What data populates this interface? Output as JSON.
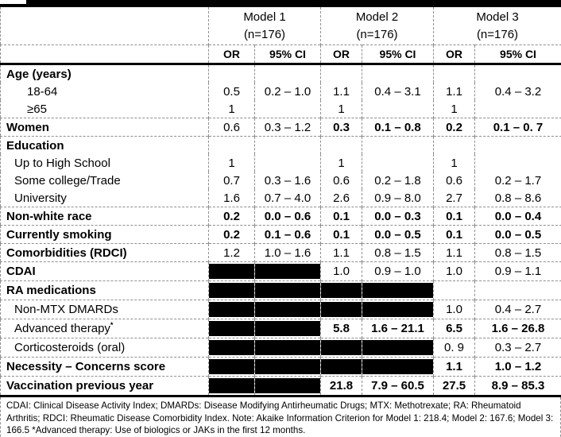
{
  "header": {
    "stub": "",
    "models": [
      {
        "name": "Model 1",
        "n": "(n=176)"
      },
      {
        "name": "Model 2",
        "n": "(n=176)"
      },
      {
        "name": "Model 3",
        "n": "(n=176)"
      }
    ],
    "col_labels": {
      "or": "OR",
      "ci": "95% CI"
    }
  },
  "rows": [
    {
      "label": "Age (years)",
      "bold": true,
      "indent": 0,
      "sep": false,
      "cells": [
        {
          "t": ""
        },
        {
          "t": ""
        },
        {
          "t": ""
        },
        {
          "t": ""
        },
        {
          "t": ""
        },
        {
          "t": ""
        }
      ]
    },
    {
      "label": "18-64",
      "bold": false,
      "indent": 2,
      "sep": false,
      "cells": [
        {
          "t": "0.5"
        },
        {
          "t": "0.2 – 1.0"
        },
        {
          "t": "1.1"
        },
        {
          "t": "0.4 – 3.1"
        },
        {
          "t": "1.1"
        },
        {
          "t": "0.4 – 3.2"
        }
      ]
    },
    {
      "label": "≥65",
      "bold": false,
      "indent": 2,
      "sep": false,
      "cells": [
        {
          "t": "1"
        },
        {
          "t": ""
        },
        {
          "t": "1"
        },
        {
          "t": ""
        },
        {
          "t": "1"
        },
        {
          "t": ""
        }
      ]
    },
    {
      "label": "Women",
      "bold": true,
      "indent": 0,
      "sep": true,
      "cells": [
        {
          "t": "0.6"
        },
        {
          "t": "0.3 – 1.2"
        },
        {
          "t": "0.3",
          "b": true
        },
        {
          "t": "0.1 – 0.8",
          "b": true
        },
        {
          "t": "0.2",
          "b": true
        },
        {
          "t": "0.1 – 0. 7",
          "b": true
        }
      ]
    },
    {
      "label": "Education",
      "bold": true,
      "indent": 0,
      "sep": true,
      "cells": [
        {
          "t": ""
        },
        {
          "t": ""
        },
        {
          "t": ""
        },
        {
          "t": ""
        },
        {
          "t": ""
        },
        {
          "t": ""
        }
      ]
    },
    {
      "label": "Up to High School",
      "bold": false,
      "indent": 1,
      "sep": false,
      "cells": [
        {
          "t": "1"
        },
        {
          "t": ""
        },
        {
          "t": "1"
        },
        {
          "t": ""
        },
        {
          "t": "1"
        },
        {
          "t": ""
        }
      ]
    },
    {
      "label": "Some college/Trade",
      "bold": false,
      "indent": 1,
      "sep": false,
      "cells": [
        {
          "t": "0.7"
        },
        {
          "t": "0.3 – 1.6"
        },
        {
          "t": "0.6"
        },
        {
          "t": "0.2 – 1.8"
        },
        {
          "t": "0.6"
        },
        {
          "t": "0.2 – 1.7"
        }
      ]
    },
    {
      "label": "University",
      "bold": false,
      "indent": 1,
      "sep": false,
      "cells": [
        {
          "t": "1.6"
        },
        {
          "t": "0.7 – 4.0"
        },
        {
          "t": "2.6"
        },
        {
          "t": "0.9 – 8.0"
        },
        {
          "t": "2.7"
        },
        {
          "t": "0.8 – 8.6"
        }
      ]
    },
    {
      "label": "Non-white race",
      "bold": true,
      "indent": 0,
      "sep": true,
      "cells": [
        {
          "t": "0.2",
          "b": true
        },
        {
          "t": "0.0 – 0.6",
          "b": true
        },
        {
          "t": "0.1",
          "b": true
        },
        {
          "t": "0.0 – 0.3",
          "b": true
        },
        {
          "t": "0.1",
          "b": true
        },
        {
          "t": "0.0 – 0.4",
          "b": true
        }
      ]
    },
    {
      "label": "Currently smoking",
      "bold": true,
      "indent": 0,
      "sep": true,
      "cells": [
        {
          "t": "0.2",
          "b": true
        },
        {
          "t": "0.1 – 0.6",
          "b": true
        },
        {
          "t": "0.1",
          "b": true
        },
        {
          "t": "0.0 – 0.5",
          "b": true
        },
        {
          "t": "0.1",
          "b": true
        },
        {
          "t": "0.0 – 0.5",
          "b": true
        }
      ]
    },
    {
      "label": "Comorbidities (RDCI)",
      "bold": true,
      "indent": 0,
      "sep": true,
      "cells": [
        {
          "t": "1.2"
        },
        {
          "t": "1.0 – 1.6"
        },
        {
          "t": "1.1"
        },
        {
          "t": "0.8 – 1.5"
        },
        {
          "t": "1.1"
        },
        {
          "t": "0.8 – 1.5"
        }
      ]
    },
    {
      "label": "CDAI",
      "bold": true,
      "indent": 0,
      "sep": true,
      "cells": [
        {
          "k": true
        },
        {
          "k": true
        },
        {
          "t": "1.0"
        },
        {
          "t": "0.9 – 1.0"
        },
        {
          "t": "1.0"
        },
        {
          "t": "0.9 – 1.1"
        }
      ]
    },
    {
      "label": "RA medications",
      "bold": true,
      "indent": 0,
      "sep": true,
      "cells": [
        {
          "k": true
        },
        {
          "k": true
        },
        {
          "k": true
        },
        {
          "k": true
        },
        {
          "t": ""
        },
        {
          "t": ""
        }
      ]
    },
    {
      "label": "Non-MTX DMARDs",
      "bold": false,
      "indent": 1,
      "sep": true,
      "cells": [
        {
          "k": true
        },
        {
          "k": true
        },
        {
          "k": true
        },
        {
          "k": true
        },
        {
          "t": "1.0"
        },
        {
          "t": "0.4 – 2.7"
        }
      ]
    },
    {
      "label": "Advanced therapy",
      "sup": "*",
      "bold": false,
      "indent": 1,
      "sep": true,
      "cells": [
        {
          "k": true
        },
        {
          "k": true
        },
        {
          "t": "5.8",
          "b": true
        },
        {
          "t": "1.6 – 21.1",
          "b": true
        },
        {
          "t": "6.5",
          "b": true
        },
        {
          "t": "1.6 – 26.8",
          "b": true
        }
      ]
    },
    {
      "label": "Corticosteroids (oral)",
      "bold": false,
      "indent": 1,
      "sep": true,
      "cells": [
        {
          "k": true
        },
        {
          "k": true
        },
        {
          "k": true
        },
        {
          "k": true
        },
        {
          "t": "0. 9"
        },
        {
          "t": "0.3 – 2.7"
        }
      ]
    },
    {
      "label": "Necessity – Concerns score",
      "bold": true,
      "indent": 0,
      "sep": true,
      "cells": [
        {
          "k": true
        },
        {
          "k": true
        },
        {
          "k": true
        },
        {
          "k": true
        },
        {
          "t": "1.1",
          "b": true
        },
        {
          "t": "1.0 – 1.2",
          "b": true
        }
      ]
    },
    {
      "label": "Vaccination previous year",
      "bold": true,
      "indent": 0,
      "sep": true,
      "cells": [
        {
          "k": true
        },
        {
          "k": true
        },
        {
          "t": "21.8",
          "b": true
        },
        {
          "t": "7.9 – 60.5",
          "b": true
        },
        {
          "t": "27.5",
          "b": true
        },
        {
          "t": "8.9 – 85.3",
          "b": true
        }
      ]
    }
  ],
  "footnote": "CDAI: Clinical Disease Activity Index; DMARDs: Disease Modifying Antirheumatic Drugs; MTX: Methotrexate; RA: Rheumatoid Arthritis; RDCI: Rheumatic Disease Comorbidity Index. Note: Akaike Information Criterion for Model 1: 218.4; Model 2: 167.6; Model 3: 166.5 *Advanced therapy: Use of biologics or JAKs in the first 12 months.",
  "colors": {
    "grid_dash": "#8f8f8f",
    "rule": "#000000",
    "redacted": "#000000",
    "background": "#ffffff"
  }
}
